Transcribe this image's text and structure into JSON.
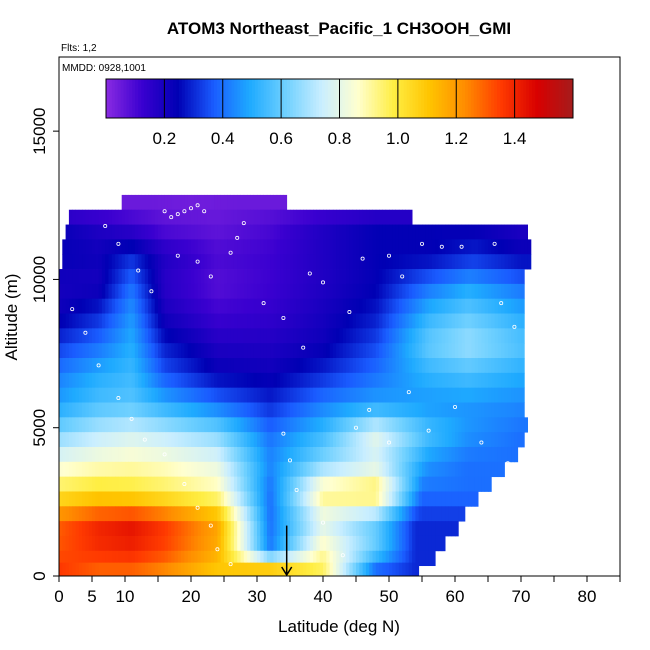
{
  "chart_data": {
    "type": "heatmap",
    "title": "ATOM3 Northeast_Pacific_1 CH3OOH_GMI",
    "flights_label": "Flts: 1,2",
    "dates_label": "MMDD: 0928,1001",
    "xlabel": "Latitude (deg N)",
    "ylabel": "Altitude (m)",
    "xlim": [
      0,
      85
    ],
    "ylim": [
      0,
      17500
    ],
    "x_tick_labels": [
      "0",
      "5",
      "10",
      "20",
      "30",
      "40",
      "50",
      "60",
      "70",
      "80"
    ],
    "x_tick_values": [
      0,
      5,
      10,
      20,
      30,
      40,
      50,
      60,
      70,
      80
    ],
    "y_tick_labels": [
      "0",
      "5000",
      "10000",
      "15000"
    ],
    "y_tick_values": [
      0,
      5000,
      10000,
      15000
    ],
    "colorbar": {
      "range": [
        0.0,
        1.6
      ],
      "tick_labels": [
        "0.2",
        "0.4",
        "0.6",
        "0.8",
        "1.0",
        "1.2",
        "1.4"
      ],
      "tick_values": [
        0.2,
        0.4,
        0.6,
        0.8,
        1.0,
        1.2,
        1.4
      ],
      "colors": [
        "#8a2be2",
        "#3a00d0",
        "#0000b4",
        "#1a5cff",
        "#1eaaff",
        "#6fd0ff",
        "#c9eeff",
        "#ffffd0",
        "#ffee44",
        "#ffc400",
        "#ff8c00",
        "#ff3a00",
        "#d80000",
        "#a51c1c"
      ]
    },
    "data_rows": [
      {
        "alt": 12600,
        "values": [
          [
            13,
            0.05
          ],
          [
            20,
            0.04
          ],
          [
            28,
            0.05
          ]
        ]
      },
      {
        "alt": 11800,
        "values": [
          [
            1,
            0.22
          ],
          [
            8,
            0.16
          ],
          [
            16,
            0.08
          ],
          [
            24,
            0.06
          ],
          [
            32,
            0.1
          ],
          [
            40,
            0.18
          ],
          [
            48,
            0.24
          ],
          [
            56,
            0.24
          ],
          [
            63,
            0.22
          ],
          [
            70,
            0.18
          ]
        ]
      },
      {
        "alt": 10800,
        "values": [
          [
            0,
            0.24
          ],
          [
            6,
            0.22
          ],
          [
            11,
            0.3
          ],
          [
            16,
            0.18
          ],
          [
            24,
            0.1
          ],
          [
            32,
            0.12
          ],
          [
            40,
            0.18
          ],
          [
            48,
            0.24
          ],
          [
            56,
            0.24
          ],
          [
            63,
            0.3
          ],
          [
            70,
            0.24
          ]
        ]
      },
      {
        "alt": 9800,
        "values": [
          [
            0,
            0.2
          ],
          [
            6,
            0.2
          ],
          [
            11,
            0.4
          ],
          [
            16,
            0.16
          ],
          [
            24,
            0.08
          ],
          [
            32,
            0.12
          ],
          [
            40,
            0.18
          ],
          [
            48,
            0.24
          ],
          [
            56,
            0.4
          ],
          [
            62,
            0.48
          ],
          [
            70,
            0.4
          ]
        ]
      },
      {
        "alt": 8800,
        "values": [
          [
            0,
            0.22
          ],
          [
            6,
            0.3
          ],
          [
            11,
            0.46
          ],
          [
            16,
            0.2
          ],
          [
            24,
            0.12
          ],
          [
            32,
            0.14
          ],
          [
            40,
            0.2
          ],
          [
            48,
            0.28
          ],
          [
            56,
            0.52
          ],
          [
            62,
            0.6
          ],
          [
            70,
            0.5
          ]
        ]
      },
      {
        "alt": 7800,
        "values": [
          [
            0,
            0.32
          ],
          [
            6,
            0.4
          ],
          [
            11,
            0.5
          ],
          [
            16,
            0.28
          ],
          [
            24,
            0.18
          ],
          [
            32,
            0.18
          ],
          [
            40,
            0.22
          ],
          [
            48,
            0.34
          ],
          [
            56,
            0.6
          ],
          [
            62,
            0.68
          ],
          [
            70,
            0.58
          ]
        ]
      },
      {
        "alt": 6800,
        "values": [
          [
            0,
            0.42
          ],
          [
            6,
            0.5
          ],
          [
            11,
            0.54
          ],
          [
            16,
            0.36
          ],
          [
            24,
            0.24
          ],
          [
            32,
            0.22
          ],
          [
            40,
            0.3
          ],
          [
            48,
            0.4
          ],
          [
            56,
            0.52
          ],
          [
            62,
            0.56
          ],
          [
            70,
            0.5
          ]
        ]
      },
      {
        "alt": 5800,
        "values": [
          [
            0,
            0.48
          ],
          [
            6,
            0.56
          ],
          [
            11,
            0.58
          ],
          [
            16,
            0.5
          ],
          [
            24,
            0.4
          ],
          [
            32,
            0.3
          ],
          [
            40,
            0.42
          ],
          [
            48,
            0.48
          ],
          [
            56,
            0.46
          ],
          [
            62,
            0.46
          ],
          [
            70,
            0.44
          ]
        ]
      },
      {
        "alt": 4800,
        "values": [
          [
            0,
            0.64
          ],
          [
            6,
            0.72
          ],
          [
            11,
            0.76
          ],
          [
            16,
            0.72
          ],
          [
            24,
            0.64
          ],
          [
            32,
            0.4
          ],
          [
            40,
            0.54
          ],
          [
            48,
            0.8
          ],
          [
            56,
            0.56
          ],
          [
            62,
            0.46
          ],
          [
            70,
            0.4
          ]
        ]
      },
      {
        "alt": 3800,
        "values": [
          [
            0,
            0.82
          ],
          [
            6,
            0.86
          ],
          [
            11,
            0.88
          ],
          [
            16,
            0.86
          ],
          [
            24,
            0.8
          ],
          [
            32,
            0.44
          ],
          [
            40,
            0.64
          ],
          [
            48,
            0.76
          ],
          [
            56,
            0.46
          ],
          [
            62,
            0.4
          ]
        ]
      },
      {
        "alt": 2800,
        "values": [
          [
            0,
            1.0
          ],
          [
            6,
            1.04
          ],
          [
            11,
            1.02
          ],
          [
            16,
            0.98
          ],
          [
            24,
            0.9
          ],
          [
            32,
            0.4
          ],
          [
            40,
            0.94
          ],
          [
            48,
            1.0
          ],
          [
            55,
            0.4
          ]
        ]
      },
      {
        "alt": 1800,
        "values": [
          [
            0,
            1.3
          ],
          [
            6,
            1.4
          ],
          [
            11,
            1.44
          ],
          [
            16,
            1.36
          ],
          [
            24,
            1.18
          ],
          [
            32,
            0.4
          ],
          [
            40,
            0.78
          ],
          [
            48,
            0.6
          ],
          [
            54,
            0.3
          ]
        ]
      },
      {
        "alt": 800,
        "values": [
          [
            0,
            1.32
          ],
          [
            6,
            1.38
          ],
          [
            11,
            1.4
          ],
          [
            16,
            1.34
          ],
          [
            24,
            1.16
          ],
          [
            32,
            0.42
          ],
          [
            40,
            0.9
          ],
          [
            48,
            0.6
          ],
          [
            54,
            0.3
          ]
        ]
      },
      {
        "alt": 200,
        "values": [
          [
            0,
            1.36
          ],
          [
            6,
            1.3
          ],
          [
            11,
            1.3
          ],
          [
            16,
            1.24
          ],
          [
            24,
            1.1
          ],
          [
            32,
            1.08
          ],
          [
            40,
            0.96
          ],
          [
            48,
            0.4
          ],
          [
            54,
            0.3
          ]
        ]
      }
    ],
    "row_ranges": [
      {
        "alt": 12600,
        "lat_min": 9.5,
        "lat_max": 34.5
      },
      {
        "alt": 12100,
        "lat_min": 1.5,
        "lat_max": 53.5
      },
      {
        "alt": 11600,
        "lat_min": 1.0,
        "lat_max": 71.0
      },
      {
        "alt": 11100,
        "lat_min": 0.5,
        "lat_max": 71.5
      },
      {
        "alt": 10600,
        "lat_min": 0.5,
        "lat_max": 71.5
      },
      {
        "alt": 10100,
        "lat_min": 0.0,
        "lat_max": 70.5
      },
      {
        "alt": 9600,
        "lat_min": 0.0,
        "lat_max": 70.5
      },
      {
        "alt": 9100,
        "lat_min": 0.0,
        "lat_max": 70.5
      },
      {
        "alt": 8600,
        "lat_min": 0.0,
        "lat_max": 70.5
      },
      {
        "alt": 8100,
        "lat_min": 0.0,
        "lat_max": 70.5
      },
      {
        "alt": 7600,
        "lat_min": 0.0,
        "lat_max": 70.5
      },
      {
        "alt": 7100,
        "lat_min": 0.0,
        "lat_max": 70.5
      },
      {
        "alt": 6600,
        "lat_min": 0.0,
        "lat_max": 70.5
      },
      {
        "alt": 6100,
        "lat_min": 0.0,
        "lat_max": 70.5
      },
      {
        "alt": 5600,
        "lat_min": 0.0,
        "lat_max": 70.5
      },
      {
        "alt": 5100,
        "lat_min": 0.0,
        "lat_max": 71.0
      },
      {
        "alt": 4600,
        "lat_min": 0.0,
        "lat_max": 70.5
      },
      {
        "alt": 4100,
        "lat_min": 0.0,
        "lat_max": 69.5
      },
      {
        "alt": 3600,
        "lat_min": 0.0,
        "lat_max": 67.5
      },
      {
        "alt": 3100,
        "lat_min": 0.0,
        "lat_max": 65.5
      },
      {
        "alt": 2600,
        "lat_min": 0.0,
        "lat_max": 63.5
      },
      {
        "alt": 2100,
        "lat_min": 0.0,
        "lat_max": 61.5
      },
      {
        "alt": 1600,
        "lat_min": 0.0,
        "lat_max": 60.5
      },
      {
        "alt": 1100,
        "lat_min": 0.0,
        "lat_max": 58.5
      },
      {
        "alt": 600,
        "lat_min": 0.0,
        "lat_max": 57.0
      },
      {
        "alt": 200,
        "lat_min": 0.0,
        "lat_max": 54.5
      }
    ],
    "flight_points": [
      [
        7,
        11800
      ],
      [
        9,
        11200
      ],
      [
        12,
        10300
      ],
      [
        14,
        9600
      ],
      [
        18,
        10800
      ],
      [
        21,
        10600
      ],
      [
        23,
        10100
      ],
      [
        26,
        10900
      ],
      [
        27,
        11400
      ],
      [
        28,
        11900
      ],
      [
        31,
        9200
      ],
      [
        34,
        8700
      ],
      [
        37,
        7700
      ],
      [
        38,
        10200
      ],
      [
        40,
        9900
      ],
      [
        44,
        8900
      ],
      [
        46,
        10700
      ],
      [
        50,
        10800
      ],
      [
        52,
        10100
      ],
      [
        55,
        11200
      ],
      [
        58,
        11100
      ],
      [
        61,
        11100
      ],
      [
        66,
        11200
      ],
      [
        67,
        9200
      ],
      [
        69,
        8400
      ],
      [
        2,
        9000
      ],
      [
        4,
        8200
      ],
      [
        6,
        7100
      ],
      [
        9,
        6000
      ],
      [
        11,
        5300
      ],
      [
        13,
        4600
      ],
      [
        16,
        4100
      ],
      [
        19,
        3100
      ],
      [
        21,
        2300
      ],
      [
        23,
        1700
      ],
      [
        24,
        900
      ],
      [
        26,
        400
      ],
      [
        34,
        4800
      ],
      [
        35,
        3900
      ],
      [
        36,
        2900
      ],
      [
        40,
        1800
      ],
      [
        43,
        700
      ],
      [
        45,
        5000
      ],
      [
        47,
        5600
      ],
      [
        50,
        4500
      ],
      [
        53,
        6200
      ],
      [
        56,
        4900
      ],
      [
        60,
        5700
      ],
      [
        64,
        4500
      ],
      [
        68,
        3800
      ],
      [
        16,
        12300
      ],
      [
        17,
        12100
      ],
      [
        18,
        12200
      ],
      [
        19,
        12300
      ],
      [
        20,
        12400
      ],
      [
        21,
        12500
      ],
      [
        22,
        12300
      ]
    ],
    "marker_lat": 34.5
  }
}
